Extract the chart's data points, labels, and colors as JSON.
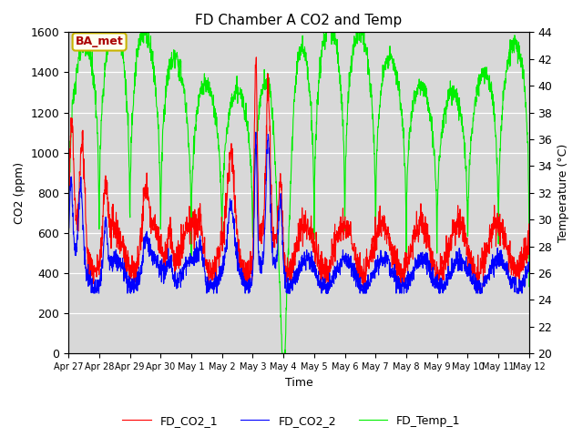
{
  "title": "FD Chamber A CO2 and Temp",
  "xlabel": "Time",
  "ylabel_left": "CO2 (ppm)",
  "ylabel_right": "Temperature (°C)",
  "legend_labels": [
    "FD_CO2_1",
    "FD_CO2_2",
    "FD_Temp_1"
  ],
  "colors": [
    "red",
    "blue",
    "#00ee00"
  ],
  "ylim_left": [
    0,
    1600
  ],
  "ylim_right": [
    20,
    44
  ],
  "background_color": "#d8d8d8",
  "annotation_text": "BA_met",
  "annotation_color": "#aa0000",
  "annotation_bg": "#fffff0",
  "annotation_border": "#c8b400",
  "x_tick_labels": [
    "Apr 27",
    "Apr 28",
    "Apr 29",
    "Apr 30",
    "May 1",
    "May 2",
    "May 3",
    "May 4",
    "May 5",
    "May 6",
    "May 7",
    "May 8",
    "May 9",
    "May 10",
    "May 11",
    "May 12"
  ],
  "yticks_left": [
    0,
    200,
    400,
    600,
    800,
    1000,
    1200,
    1400,
    1600
  ],
  "yticks_right": [
    20,
    22,
    24,
    26,
    28,
    30,
    32,
    34,
    36,
    38,
    40,
    42,
    44
  ]
}
